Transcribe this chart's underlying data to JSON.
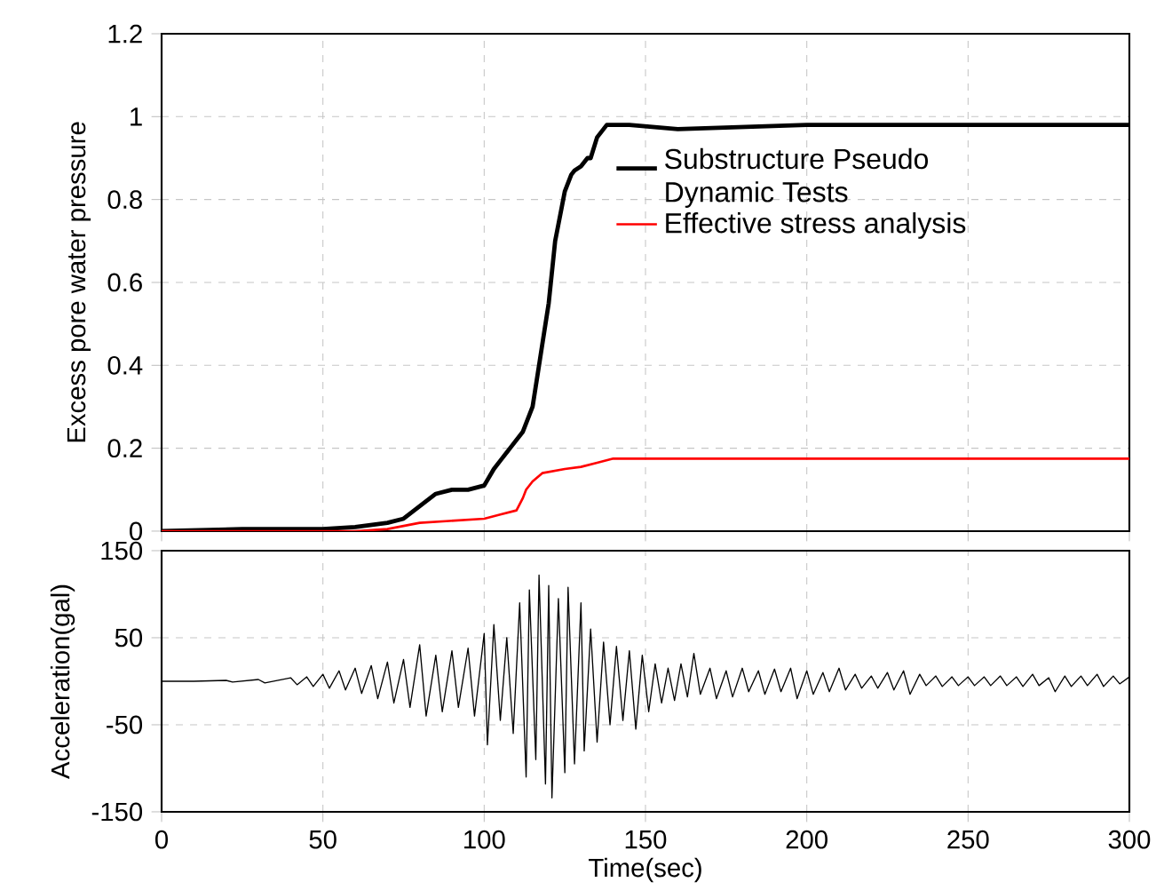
{
  "chart_data": [
    {
      "type": "line",
      "ylabel": "Excess pore water pressure",
      "xlim": [
        0,
        300
      ],
      "xticks": [
        0,
        50,
        100,
        150,
        200,
        250,
        300
      ],
      "ylim": [
        0,
        1.2
      ],
      "yticks": [
        0,
        0.2,
        0.4,
        0.6,
        0.8,
        1,
        1.2
      ],
      "grid": true,
      "legend": "right",
      "tick_labels": "y",
      "series": [
        {
          "name": "Substructure Pseudo Dynamic Tests",
          "color": "#000000",
          "x": [
            0,
            25,
            50,
            60,
            70,
            75,
            80,
            85,
            90,
            95,
            100,
            103,
            105,
            108,
            110,
            112,
            115,
            117,
            118,
            120,
            122,
            124,
            125,
            127,
            128,
            130,
            132,
            133,
            135,
            138,
            145,
            160,
            200,
            250,
            300
          ],
          "values": [
            0,
            0.005,
            0.005,
            0.01,
            0.02,
            0.03,
            0.06,
            0.09,
            0.1,
            0.1,
            0.11,
            0.15,
            0.17,
            0.2,
            0.22,
            0.24,
            0.3,
            0.4,
            0.45,
            0.55,
            0.7,
            0.78,
            0.82,
            0.86,
            0.87,
            0.88,
            0.9,
            0.9,
            0.95,
            0.98,
            0.98,
            0.97,
            0.98,
            0.98,
            0.98
          ]
        },
        {
          "name": "Effective stress analysis",
          "color": "#ff0000",
          "x": [
            0,
            60,
            70,
            80,
            100,
            105,
            110,
            112,
            113,
            115,
            118,
            125,
            130,
            135,
            140,
            150,
            200,
            300
          ],
          "values": [
            0,
            0,
            0.005,
            0.02,
            0.03,
            0.04,
            0.05,
            0.08,
            0.1,
            0.12,
            0.14,
            0.15,
            0.155,
            0.165,
            0.175,
            0.175,
            0.175,
            0.175
          ]
        }
      ]
    },
    {
      "type": "line",
      "xlabel": "Time(sec)",
      "ylabel": "Acceleration(gal)",
      "xlim": [
        0,
        300
      ],
      "xticks": [
        0,
        50,
        100,
        150,
        200,
        250,
        300
      ],
      "ylim": [
        -150,
        150
      ],
      "yticks": [
        -150,
        -50,
        50,
        150
      ],
      "grid": true,
      "series": [
        {
          "color": "#000000",
          "x": [
            0,
            10,
            20,
            22,
            30,
            32,
            40,
            42,
            45,
            47,
            50,
            52,
            55,
            57,
            60,
            62,
            65,
            67,
            70,
            72,
            75,
            77,
            80,
            82,
            85,
            87,
            90,
            92,
            95,
            97,
            100,
            101,
            103,
            105,
            107,
            109,
            111,
            113,
            114,
            116,
            117,
            119,
            120,
            121,
            123,
            125,
            126,
            128,
            130,
            131,
            133,
            135,
            137,
            139,
            141,
            143,
            145,
            147,
            149,
            151,
            153,
            155,
            157,
            159,
            161,
            163,
            165,
            167,
            170,
            172,
            175,
            177,
            180,
            182,
            185,
            187,
            190,
            192,
            195,
            197,
            200,
            202,
            205,
            207,
            210,
            212,
            215,
            217,
            220,
            222,
            225,
            227,
            230,
            232,
            235,
            237,
            240,
            242,
            245,
            247,
            250,
            252,
            255,
            257,
            260,
            262,
            265,
            267,
            270,
            272,
            275,
            277,
            280,
            282,
            285,
            287,
            290,
            292,
            295,
            297,
            300
          ],
          "values": [
            0,
            0,
            1,
            -1,
            2,
            -2,
            4,
            -4,
            5,
            -6,
            8,
            -8,
            12,
            -10,
            15,
            -14,
            18,
            -20,
            22,
            -25,
            25,
            -30,
            42,
            -40,
            30,
            -35,
            35,
            -30,
            38,
            -40,
            55,
            -73,
            65,
            -45,
            50,
            -60,
            90,
            -110,
            105,
            -90,
            122,
            -118,
            110,
            -134,
            95,
            -105,
            108,
            -95,
            90,
            -80,
            60,
            -70,
            45,
            -50,
            40,
            -45,
            35,
            -55,
            30,
            -35,
            20,
            -25,
            15,
            -22,
            20,
            -18,
            32,
            -15,
            15,
            -20,
            12,
            -18,
            15,
            -12,
            12,
            -15,
            14,
            -12,
            15,
            -20,
            12,
            -15,
            10,
            -12,
            15,
            -10,
            8,
            -8,
            6,
            -8,
            10,
            -10,
            12,
            -15,
            8,
            -5,
            6,
            -6,
            5,
            -5,
            5,
            -5,
            5,
            -5,
            6,
            -5,
            5,
            -6,
            8,
            -5,
            4,
            -12,
            6,
            -6,
            6,
            -5,
            8,
            -6,
            6,
            -3,
            5
          ]
        }
      ]
    }
  ]
}
